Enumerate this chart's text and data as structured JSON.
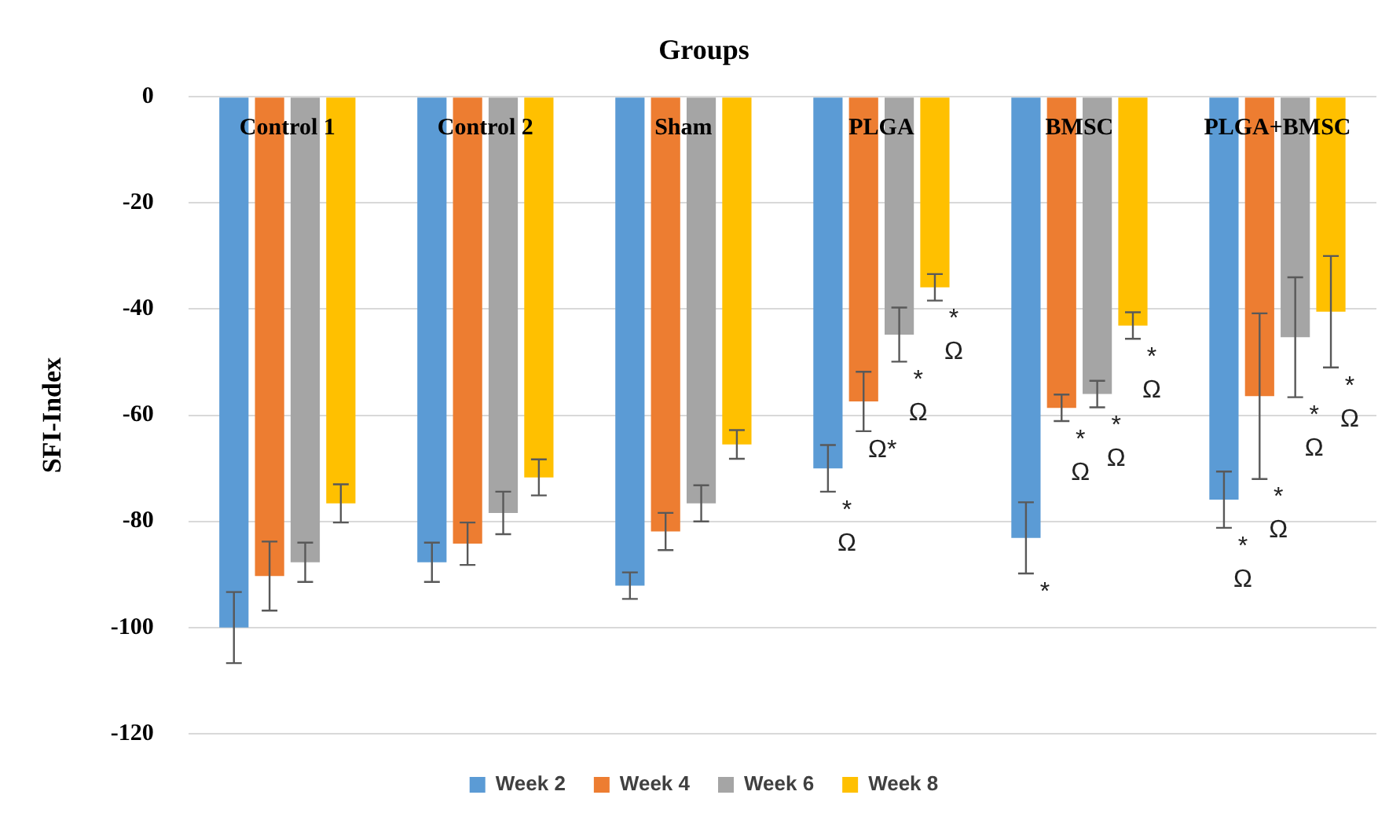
{
  "chart_data": {
    "type": "bar",
    "title": "Groups",
    "ylabel": "SFI-Index",
    "categories": [
      "Control 1",
      "Control 2",
      "Sham",
      "PLGA",
      "BMSC",
      "PLGA+BMSC"
    ],
    "series": [
      {
        "name": "Week 2",
        "color": "#5b9bd5",
        "values": [
          -100,
          -87.7,
          -92.1,
          -70,
          -83.1,
          -75.9
        ],
        "errors": [
          6.7,
          3.7,
          2.5,
          4.4,
          6.7,
          5.3
        ]
      },
      {
        "name": "Week 4",
        "color": "#ed7d31",
        "values": [
          -90.3,
          -84.2,
          -81.9,
          -57.4,
          -58.6,
          -56.4
        ],
        "errors": [
          6.5,
          4,
          3.5,
          5.6,
          2.5,
          15.6
        ]
      },
      {
        "name": "Week 6",
        "color": "#a5a5a5",
        "values": [
          -87.7,
          -78.4,
          -76.6,
          -44.8,
          -56,
          -45.3
        ],
        "errors": [
          3.7,
          4,
          3.4,
          5.1,
          2.5,
          11.3
        ]
      },
      {
        "name": "Week 8",
        "color": "#ffc000",
        "values": [
          -76.6,
          -71.7,
          -65.5,
          -35.9,
          -43.1,
          -40.5
        ],
        "errors": [
          3.6,
          3.4,
          2.7,
          2.5,
          2.5,
          10.5
        ]
      }
    ],
    "ylim": [
      -120,
      0
    ],
    "yticks": [
      -120,
      -100,
      -80,
      -60,
      -40,
      -20,
      0
    ],
    "grid": "y",
    "legend": "bottom",
    "annotations": [
      "*\nΩ",
      "Ω*",
      "*\nΩ",
      "*\nΩ",
      "*",
      "*\nΩ",
      "*\nΩ",
      "*\nΩ",
      "*\nΩ",
      "*\nΩ",
      "*\nΩ",
      "*\nΩ"
    ]
  }
}
